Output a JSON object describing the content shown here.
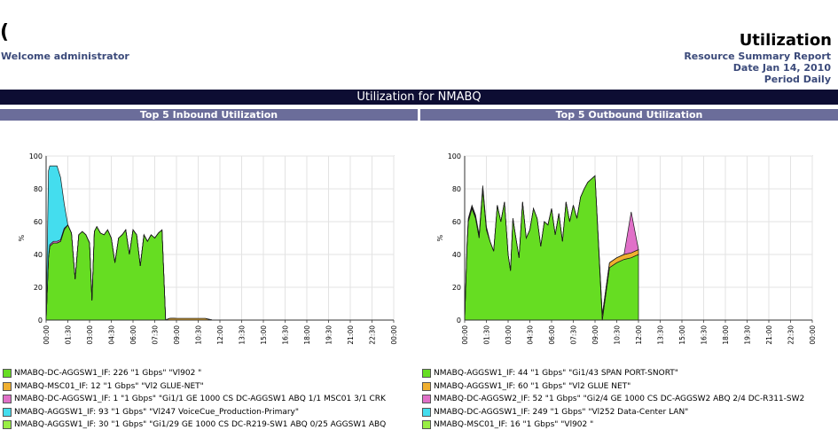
{
  "header": {
    "logo_fragment": "(",
    "welcome": "Welcome administrator",
    "title": "Utilization",
    "report_name": "Resource Summary Report",
    "date": "Date Jan 14, 2010",
    "period": "Period Daily"
  },
  "banner": "Utilization for NMABQ",
  "chart_data": [
    {
      "type": "area",
      "stacked": true,
      "title": "Top 5 Inbound Utilization",
      "ylabel": "%",
      "ylim": [
        0,
        100
      ],
      "yticks": [
        0,
        20,
        40,
        60,
        80,
        100
      ],
      "x_tick_labels": [
        "00:00",
        "01:30",
        "03:00",
        "04:30",
        "06:00",
        "07:30",
        "09:00",
        "10:30",
        "12:00",
        "13:30",
        "15:00",
        "16:30",
        "18:00",
        "19:30",
        "21:00",
        "22:30",
        "00:00"
      ],
      "grid": true,
      "legend_position": "bottom",
      "x": [
        "00:00",
        "00:10",
        "00:15",
        "00:30",
        "00:45",
        "01:00",
        "01:15",
        "01:30",
        "01:45",
        "02:00",
        "02:15",
        "02:30",
        "02:45",
        "03:00",
        "03:10",
        "03:20",
        "03:30",
        "03:45",
        "04:00",
        "04:15",
        "04:30",
        "04:45",
        "05:00",
        "05:15",
        "05:30",
        "05:45",
        "06:00",
        "06:15",
        "06:30",
        "06:45",
        "07:00",
        "07:15",
        "07:30",
        "07:45",
        "08:00",
        "08:15",
        "08:30",
        "08:45",
        "09:00",
        "09:30",
        "10:00",
        "10:30",
        "11:00",
        "11:30",
        "12:00"
      ],
      "series": [
        {
          "name": "NMABQ-DC-AGGSW1_IF: 226 \"1 Gbps\" \"Vl902 \"",
          "color": "#66dd22",
          "values": [
            0,
            38,
            45,
            47,
            47,
            48,
            55,
            58,
            53,
            25,
            52,
            54,
            52,
            47,
            12,
            54,
            57,
            53,
            52,
            55,
            50,
            35,
            50,
            52,
            55,
            40,
            55,
            52,
            33,
            52,
            48,
            52,
            50,
            53,
            55,
            0,
            0,
            0,
            0,
            0,
            0,
            0,
            0,
            0,
            0
          ]
        },
        {
          "name": "NMABQ-MSC01_IF: 12 \"1 Gbps\" \"Vl2 GLUE-NET\"",
          "color": "#f0b030",
          "values": [
            0,
            0,
            0,
            0,
            0,
            0,
            0,
            0,
            0,
            0,
            0,
            0,
            0,
            0,
            0,
            0,
            0,
            0,
            0,
            0,
            0,
            0,
            0,
            0,
            0,
            0,
            0,
            0,
            0,
            0,
            0,
            0,
            0,
            0,
            0,
            0,
            1,
            1.2,
            1,
            1,
            1,
            1,
            1,
            0,
            0
          ]
        },
        {
          "name": "NMABQ-DC-AGGSW1_IF: 1 \"1 Gbps\" \"Gi1/1 GE 1000 CS DC-AGGSW1 ABQ 1/1 MSC01 3/1 CRK",
          "color": "#e070c8",
          "values": [
            0,
            1,
            1,
            1,
            1,
            1,
            1,
            0,
            0,
            0,
            0,
            0,
            0,
            0,
            0,
            0,
            0,
            0,
            0,
            0,
            0,
            0,
            0,
            0,
            0,
            0,
            0,
            0,
            0,
            0,
            0,
            0,
            0,
            0,
            0,
            0,
            0,
            0,
            0,
            0,
            0,
            0,
            0,
            0,
            0
          ]
        },
        {
          "name": "NMABQ-AGGSW1_IF: 93 \"1 Gbps\" \"Vl247 VoiceCue_Production-Primary\"",
          "color": "#44ddee",
          "values": [
            0,
            52,
            48,
            46,
            46,
            38,
            15,
            0,
            0,
            0,
            0,
            0,
            0,
            0,
            0,
            0,
            0,
            0,
            0,
            0,
            0,
            0,
            0,
            0,
            0,
            0,
            0,
            0,
            0,
            0,
            0,
            0,
            0,
            0,
            0,
            0,
            0,
            0,
            0,
            0,
            0,
            0,
            0,
            0,
            0
          ]
        },
        {
          "name": "NMABQ-AGGSW1_IF: 30 \"1 Gbps\" \"Gi1/29 GE 1000 CS DC-R219-SW1 ABQ 0/25 AGGSW1 ABQ",
          "color": "#99ee44",
          "values": [
            0,
            0,
            0,
            0,
            0,
            0,
            0,
            0,
            0,
            0,
            0,
            0,
            0,
            0,
            0,
            0,
            0,
            0,
            0,
            0,
            0,
            0,
            0,
            0,
            0,
            0,
            0,
            0,
            0,
            0,
            0,
            0,
            0,
            0,
            0,
            0,
            0,
            0,
            0,
            0,
            0,
            0,
            0,
            0,
            0
          ]
        }
      ]
    },
    {
      "type": "area",
      "stacked": true,
      "title": "Top 5 Outbound Utilization",
      "ylabel": "%",
      "ylim": [
        0,
        100
      ],
      "yticks": [
        0,
        20,
        40,
        60,
        80,
        100
      ],
      "x_tick_labels": [
        "00:00",
        "01:30",
        "03:00",
        "04:30",
        "06:00",
        "07:30",
        "09:00",
        "10:30",
        "12:00",
        "13:30",
        "15:00",
        "16:30",
        "18:00",
        "19:30",
        "21:00",
        "22:30",
        "00:00"
      ],
      "grid": true,
      "legend_position": "bottom",
      "x": [
        "00:00",
        "00:10",
        "00:15",
        "00:30",
        "00:45",
        "01:00",
        "01:15",
        "01:30",
        "01:45",
        "02:00",
        "02:15",
        "02:30",
        "02:45",
        "03:00",
        "03:10",
        "03:20",
        "03:30",
        "03:45",
        "04:00",
        "04:15",
        "04:30",
        "04:45",
        "05:00",
        "05:15",
        "05:30",
        "05:45",
        "06:00",
        "06:15",
        "06:30",
        "06:45",
        "07:00",
        "07:15",
        "07:30",
        "07:45",
        "08:00",
        "08:15",
        "08:30",
        "08:45",
        "09:00",
        "09:30",
        "10:00",
        "10:30",
        "11:00",
        "11:30",
        "12:00"
      ],
      "series": [
        {
          "name": "NMABQ-AGGSW1_IF: 44 \"1 Gbps\" \"Gi1/43 SPAN PORT-SNORT\"",
          "color": "#66dd22",
          "values": [
            0,
            45,
            60,
            68,
            62,
            50,
            80,
            55,
            48,
            42,
            70,
            60,
            72,
            40,
            30,
            62,
            52,
            38,
            72,
            50,
            55,
            68,
            62,
            45,
            60,
            58,
            68,
            52,
            65,
            48,
            72,
            60,
            70,
            62,
            75,
            80,
            84,
            86,
            88,
            0,
            32,
            35,
            37,
            38,
            40
          ]
        },
        {
          "name": "NMABQ-AGGSW1_IF: 60 \"1 Gbps\" \"Vl2 GLUE NET\"",
          "color": "#f0b030",
          "values": [
            0,
            1,
            1,
            1,
            1,
            1,
            1,
            1,
            0,
            0,
            0,
            0,
            0,
            0,
            0,
            0,
            0,
            0,
            0,
            0,
            0,
            0,
            0,
            0,
            0,
            0,
            0,
            0,
            0,
            0,
            0,
            0,
            0,
            0,
            0,
            0,
            0,
            0,
            0,
            3,
            3,
            3,
            3,
            3,
            3
          ]
        },
        {
          "name": "NMABQ-DC-AGGSW2_IF: 52 \"1 Gbps\" \"Gi2/4 GE 1000 CS DC-AGGSW2 ABQ 2/4 DC-R311-SW2",
          "color": "#e070c8",
          "values": [
            0,
            1,
            1,
            1,
            1,
            1,
            1,
            1,
            0,
            0,
            0,
            0,
            0,
            0,
            0,
            0,
            0,
            0,
            0,
            0,
            0,
            0,
            0,
            0,
            0,
            0,
            0,
            0,
            0,
            0,
            0,
            0,
            0,
            0,
            0,
            0,
            0,
            0,
            0,
            0,
            0,
            0,
            0,
            25,
            0
          ]
        },
        {
          "name": "NMABQ-DC-AGGSW1_IF: 249 \"1 Gbps\" \"Vl252 Data-Center LAN\"",
          "color": "#44ddee",
          "values": [
            0,
            0,
            0,
            0,
            0,
            0,
            0,
            0,
            0,
            0,
            0,
            0,
            0,
            0,
            0,
            0,
            0,
            0,
            0,
            0,
            0,
            0,
            0,
            0,
            0,
            0,
            0,
            0,
            0,
            0,
            0,
            0,
            0,
            0,
            0,
            0,
            0,
            0,
            0,
            0,
            0,
            0,
            0,
            0,
            0
          ]
        },
        {
          "name": "NMABQ-MSC01_IF: 16 \"1 Gbps\" \"Vl902 \"",
          "color": "#99ee44",
          "values": [
            0,
            0,
            0,
            0,
            0,
            0,
            0,
            0,
            0,
            0,
            0,
            0,
            0,
            0,
            0,
            0,
            0,
            0,
            0,
            0,
            0,
            0,
            0,
            0,
            0,
            0,
            0,
            0,
            0,
            0,
            0,
            0,
            0,
            0,
            0,
            0,
            0,
            0,
            0,
            0,
            0,
            0,
            0,
            0,
            0
          ]
        }
      ]
    }
  ]
}
